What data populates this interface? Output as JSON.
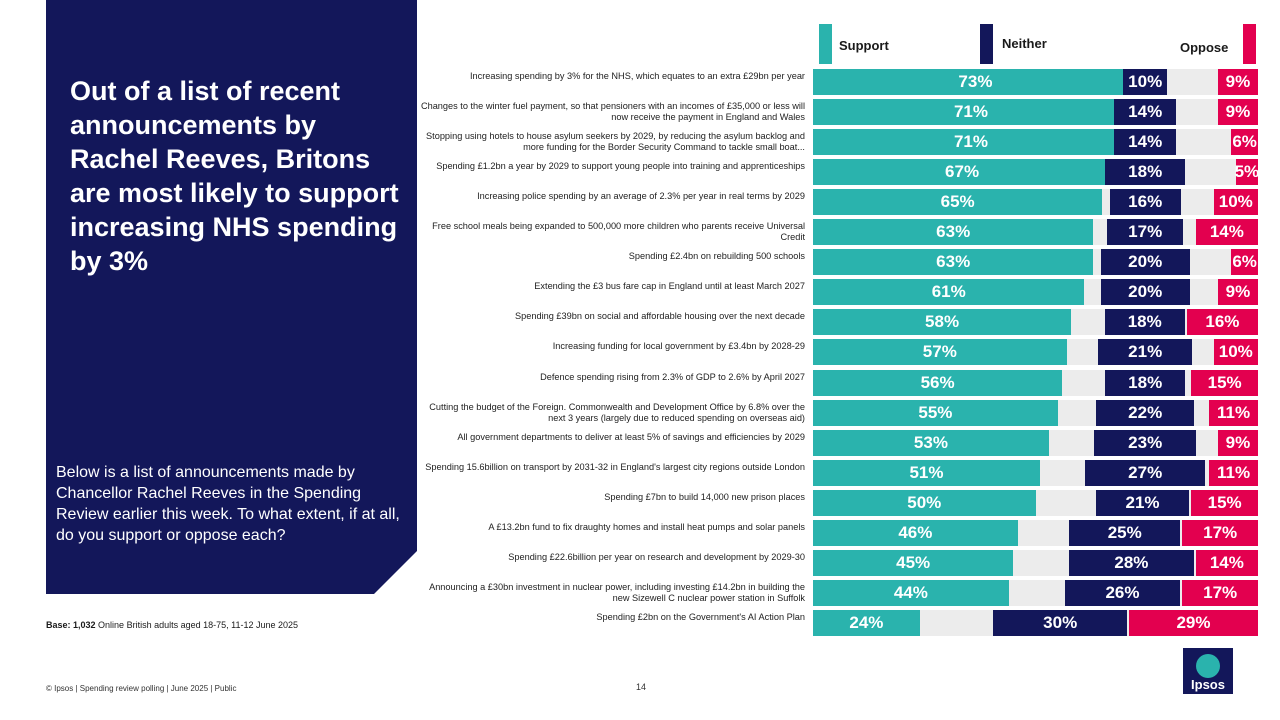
{
  "headline": "Out of a list of recent announcements by Rachel Reeves, Britons are most likely to support increasing NHS spending by 3%",
  "question": "Below is a list of announcements made by Chancellor Rachel Reeves in the Spending Review earlier this week. To what extent, if at all, do you support or oppose each?",
  "base_label": "Base: 1,032",
  "base_text": " Online British adults aged 18-75, 11-12 June 2025",
  "footer": "© Ipsos | Spending review polling | June 2025 | Public",
  "page_number": "14",
  "logo_text": "Ipsos",
  "colors": {
    "support": "#2ab3ad",
    "neither": "#13175a",
    "oppose": "#e3004f",
    "panel": "#13175a"
  },
  "chart_data": {
    "type": "bar",
    "orientation": "horizontal",
    "stacked": false,
    "legend": [
      "Support",
      "Neither",
      "Oppose"
    ],
    "legend_position": "top",
    "categories": [
      "Increasing spending by 3% for the NHS, which equates to an extra £29bn per year",
      "Changes to the winter fuel payment, so that pensioners with an incomes of £35,000 or less will now receive the payment in England and Wales",
      "Stopping using hotels to house asylum seekers by 2029, by reducing the asylum backlog and more funding for the Border Security Command to tackle small boat...",
      "Spending £1.2bn a year by 2029 to support young people into training and apprenticeships",
      "Increasing police spending by an average of 2.3% per year in real terms by 2029",
      "Free school meals being expanded to 500,000 more children who parents receive Universal Credit",
      "Spending £2.4bn on rebuilding 500 schools",
      "Extending the £3 bus fare cap in England until at least March 2027",
      "Spending £39bn on social and affordable housing over the next decade",
      "Increasing funding for local government by £3.4bn by 2028-29",
      "Defence spending rising from 2.3% of GDP to 2.6% by April 2027",
      "Cutting the budget of the Foreign. Commonwealth and Development Office by 6.8% over the next 3 years (largely due to reduced spending on overseas aid)",
      "All government departments to deliver at least 5% of savings and efficiencies by 2029",
      "Spending 15.6billion on transport by 2031-32 in England's largest city regions outside London",
      "Spending £7bn to build 14,000 new prison places",
      "A £13.2bn fund to fix draughty homes and install heat pumps and solar panels",
      "Spending £22.6billion per year on research and development by 2029-30",
      "Announcing a £30bn investment in nuclear power, including investing £14.2bn in building the new Sizewell C nuclear power station in Suffolk",
      "Spending £2bn on the Government's AI Action Plan"
    ],
    "series": [
      {
        "name": "Support",
        "values": [
          73,
          71,
          71,
          67,
          65,
          63,
          63,
          61,
          58,
          57,
          56,
          55,
          53,
          51,
          50,
          46,
          45,
          44,
          24
        ]
      },
      {
        "name": "Neither",
        "values": [
          10,
          14,
          14,
          18,
          16,
          17,
          20,
          20,
          18,
          21,
          18,
          22,
          23,
          27,
          21,
          25,
          28,
          26,
          30
        ]
      },
      {
        "name": "Oppose",
        "values": [
          9,
          9,
          6,
          5,
          10,
          14,
          6,
          9,
          16,
          10,
          15,
          11,
          9,
          11,
          15,
          17,
          14,
          17,
          29
        ]
      }
    ],
    "value_suffix": "%",
    "xlim": [
      0,
      100
    ]
  }
}
